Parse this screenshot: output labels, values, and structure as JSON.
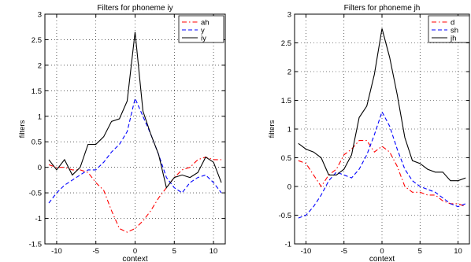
{
  "chart_data": [
    {
      "type": "line",
      "title": "Filters for phoneme iy",
      "xlabel": "context",
      "ylabel": "filters",
      "xlim": [
        -11.5,
        11.5
      ],
      "ylim": [
        -1.5,
        3
      ],
      "xticks": [
        -10,
        -5,
        0,
        5,
        10
      ],
      "yticks": [
        -1.5,
        -1,
        -0.5,
        0,
        0.5,
        1,
        1.5,
        2,
        2.5,
        3
      ],
      "grid": true,
      "legend_position": "top-right",
      "x": [
        -11,
        -10,
        -9,
        -8,
        -7,
        -6,
        -5,
        -4,
        -3,
        -2,
        -1,
        0,
        1,
        2,
        3,
        4,
        5,
        6,
        7,
        8,
        9,
        10,
        11
      ],
      "series": [
        {
          "name": "ah",
          "color": "#ff0000",
          "dash": "dashdot",
          "values": [
            0.05,
            0.0,
            0.0,
            -0.05,
            -0.05,
            -0.1,
            -0.3,
            -0.45,
            -0.85,
            -1.2,
            -1.27,
            -1.2,
            -1.05,
            -0.85,
            -0.6,
            -0.4,
            -0.2,
            -0.05,
            0.0,
            0.15,
            0.2,
            0.15,
            0.15
          ]
        },
        {
          "name": "y",
          "color": "#0000ff",
          "dash": "dashed",
          "values": [
            -0.7,
            -0.5,
            -0.35,
            -0.25,
            -0.15,
            -0.05,
            -0.05,
            0.1,
            0.3,
            0.45,
            0.7,
            1.35,
            1.0,
            0.65,
            0.25,
            -0.2,
            -0.4,
            -0.5,
            -0.3,
            -0.2,
            -0.15,
            -0.3,
            -0.5
          ]
        },
        {
          "name": "iy",
          "color": "#000000",
          "dash": "solid",
          "values": [
            0.15,
            -0.05,
            0.15,
            -0.15,
            0.0,
            0.45,
            0.45,
            0.6,
            0.9,
            0.95,
            1.3,
            2.65,
            1.1,
            0.65,
            0.25,
            -0.4,
            -0.2,
            -0.15,
            -0.2,
            -0.1,
            0.2,
            0.1,
            -0.3
          ]
        }
      ]
    },
    {
      "type": "line",
      "title": "Filters for phoneme jh",
      "xlabel": "context",
      "ylabel": "filters",
      "xlim": [
        -11.5,
        11.5
      ],
      "ylim": [
        -1,
        3
      ],
      "xticks": [
        -10,
        -5,
        0,
        5,
        10
      ],
      "yticks": [
        -1,
        -0.5,
        0,
        0.5,
        1,
        1.5,
        2,
        2.5,
        3
      ],
      "grid": true,
      "legend_position": "top-right",
      "x": [
        -11,
        -10,
        -9,
        -8,
        -7,
        -6,
        -5,
        -4,
        -3,
        -2,
        -1,
        0,
        1,
        2,
        3,
        4,
        5,
        6,
        7,
        8,
        9,
        10,
        11
      ],
      "series": [
        {
          "name": "d",
          "color": "#ff0000",
          "dash": "dashdot",
          "values": [
            0.45,
            0.4,
            0.2,
            0.0,
            0.2,
            0.3,
            0.55,
            0.65,
            0.8,
            0.8,
            0.6,
            0.7,
            0.6,
            0.35,
            0.0,
            -0.1,
            -0.1,
            -0.15,
            -0.15,
            -0.25,
            -0.3,
            -0.3,
            -0.35
          ]
        },
        {
          "name": "sh",
          "color": "#0000ff",
          "dash": "dashed",
          "values": [
            -0.55,
            -0.5,
            -0.35,
            -0.15,
            0.1,
            0.25,
            0.2,
            0.15,
            0.3,
            0.55,
            0.9,
            1.3,
            1.05,
            0.65,
            0.3,
            0.1,
            0.0,
            -0.05,
            -0.1,
            -0.2,
            -0.3,
            -0.35,
            -0.3
          ]
        },
        {
          "name": "jh",
          "color": "#000000",
          "dash": "solid",
          "values": [
            0.75,
            0.65,
            0.6,
            0.5,
            0.2,
            0.2,
            0.3,
            0.55,
            1.2,
            1.4,
            1.95,
            2.75,
            2.25,
            1.6,
            0.85,
            0.45,
            0.4,
            0.3,
            0.25,
            0.25,
            0.1,
            0.1,
            0.15
          ]
        }
      ]
    }
  ]
}
